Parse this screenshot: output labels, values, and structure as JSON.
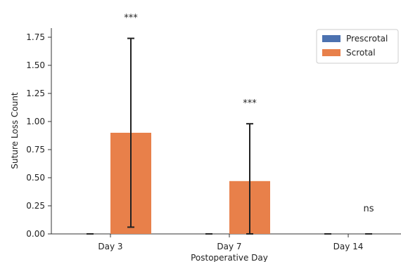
{
  "chart_data": {
    "type": "bar",
    "xlabel": "Postoperative Day",
    "ylabel": "Suture Loss Count",
    "categories": [
      "Day 3",
      "Day 7",
      "Day 14"
    ],
    "ylim": [
      0,
      1.85
    ],
    "yticks": [
      0.0,
      0.25,
      0.5,
      0.75,
      1.0,
      1.25,
      1.5,
      1.75
    ],
    "ytick_labels": [
      "0.00",
      "0.25",
      "0.50",
      "0.75",
      "1.00",
      "1.25",
      "1.50",
      "1.75"
    ],
    "series": [
      {
        "name": "Prescrotal",
        "color": "#4c72b0",
        "values": [
          0,
          0,
          0
        ],
        "error": [
          0,
          0,
          0
        ]
      },
      {
        "name": "Scrotal",
        "color": "#e8804a",
        "values": [
          0.9,
          0.47,
          0
        ],
        "error": [
          0.84,
          0.51,
          0
        ]
      }
    ],
    "annotations": [
      "***",
      "***",
      "ns"
    ],
    "legend_position": "top-right",
    "grid": false
  }
}
